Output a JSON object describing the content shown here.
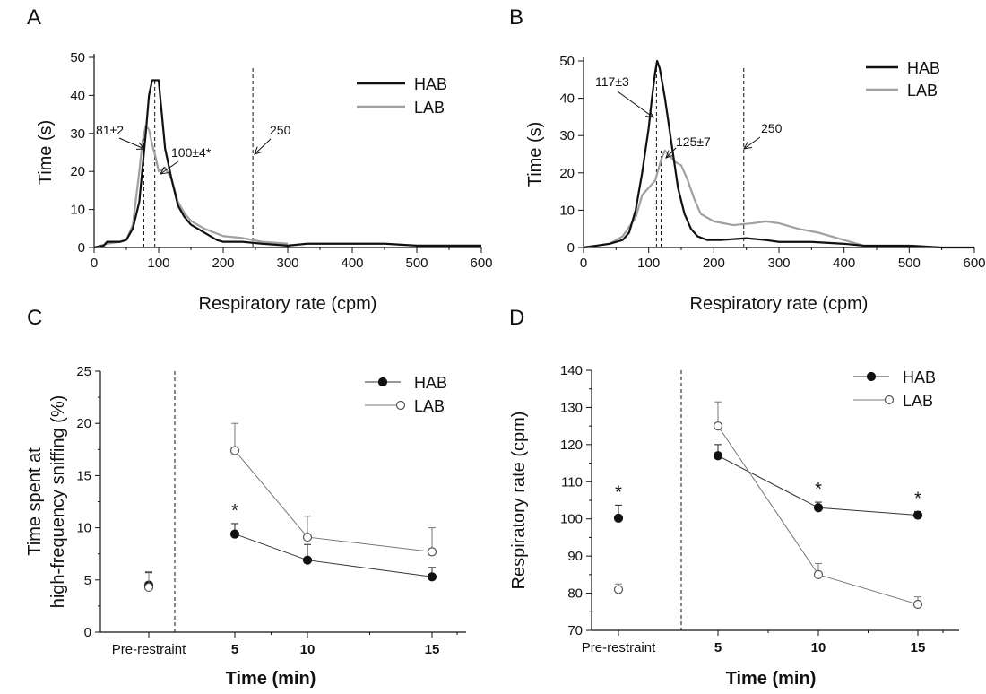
{
  "chart_data": [
    {
      "type": "line",
      "panel_label": "A",
      "xlabel": "Respiratory rate (cpm)",
      "ylabel": "Time (s)",
      "xlim": [
        0,
        600
      ],
      "ylim": [
        0,
        50
      ],
      "xticks": [
        "0",
        "100",
        "200",
        "300",
        "400",
        "500",
        "600"
      ],
      "yticks": [
        "0",
        "10",
        "20",
        "30",
        "40",
        "50"
      ],
      "legend_position": "top-right",
      "series": [
        {
          "name": "HAB",
          "color": "#111111",
          "x": [
            0,
            15,
            20,
            40,
            50,
            60,
            70,
            80,
            85,
            90,
            95,
            100,
            105,
            110,
            120,
            130,
            140,
            150,
            170,
            190,
            200,
            230,
            260,
            300,
            330,
            360,
            400,
            450,
            500,
            550,
            600
          ],
          "y": [
            0,
            0.5,
            1.5,
            1.5,
            2,
            5,
            12,
            30,
            40,
            44,
            44,
            44,
            35,
            26,
            18,
            11,
            8,
            6,
            4,
            2,
            1.5,
            1.5,
            1,
            0.5,
            1,
            1,
            1,
            1,
            0.5,
            0.5,
            0.5
          ]
        },
        {
          "name": "LAB",
          "color": "#a0a0a0",
          "x": [
            0,
            20,
            40,
            50,
            60,
            70,
            75,
            80,
            85,
            90,
            95,
            100,
            110,
            120,
            130,
            140,
            150,
            170,
            200,
            230,
            260,
            300
          ],
          "y": [
            0,
            1,
            1.5,
            2,
            6,
            20,
            28,
            32,
            31,
            27,
            24,
            20,
            21,
            18,
            12,
            9,
            7,
            5,
            3,
            2.5,
            1.5,
            1
          ]
        }
      ],
      "vlines": [
        77,
        94,
        246
      ],
      "annotations": [
        "81±2",
        "100±4*",
        "250"
      ]
    },
    {
      "type": "line",
      "panel_label": "B",
      "xlabel": "Respiratory rate (cpm)",
      "ylabel": "Time (s)",
      "xlim": [
        0,
        600
      ],
      "ylim": [
        0,
        50
      ],
      "xticks": [
        "0",
        "100",
        "200",
        "300",
        "400",
        "500",
        "600"
      ],
      "yticks": [
        "0",
        "10",
        "20",
        "30",
        "40",
        "50"
      ],
      "legend_position": "top-right",
      "series": [
        {
          "name": "HAB",
          "color": "#111111",
          "x": [
            0,
            20,
            40,
            60,
            70,
            80,
            90,
            100,
            105,
            110,
            113,
            117,
            125,
            135,
            145,
            155,
            165,
            175,
            190,
            210,
            250,
            280,
            300,
            350,
            400,
            430,
            500,
            550,
            600
          ],
          "y": [
            0,
            0.5,
            1,
            2,
            4,
            10,
            20,
            32,
            40,
            47,
            50,
            48,
            40,
            28,
            16,
            9,
            5,
            3,
            2,
            2,
            2.5,
            2,
            1.5,
            1.5,
            1,
            0.5,
            0.5,
            0,
            0
          ]
        },
        {
          "name": "LAB",
          "color": "#a0a0a0",
          "x": [
            0,
            20,
            40,
            60,
            80,
            90,
            100,
            110,
            120,
            125,
            130,
            140,
            150,
            160,
            170,
            180,
            200,
            230,
            260,
            280,
            300,
            330,
            360,
            400,
            420,
            430
          ],
          "y": [
            0,
            0.5,
            1,
            3,
            8,
            14,
            16,
            18,
            24,
            26,
            25,
            23,
            22,
            18,
            13,
            9,
            7,
            6,
            6.5,
            7,
            6.5,
            5,
            4,
            2,
            1,
            0.5
          ]
        }
      ],
      "vlines": [
        112,
        119,
        246
      ],
      "annotations": [
        "117±3",
        "125±7",
        "250"
      ]
    },
    {
      "type": "line",
      "panel_label": "C",
      "xlabel": "Time (min)",
      "ylabel_line1": "Time spent at",
      "ylabel_line2": "high-frequency sniffing (%)",
      "ylim": [
        0,
        25
      ],
      "yticks": [
        "0",
        "5",
        "10",
        "15",
        "20",
        "25"
      ],
      "categories": [
        "Pre-restraint",
        "5",
        "10",
        "15"
      ],
      "legend_position": "top-right",
      "series": [
        {
          "name": "HAB",
          "marker": "filled",
          "values": [
            4.5,
            9.4,
            6.9,
            5.3
          ],
          "err": [
            1.2,
            1.0,
            1.5,
            0.9
          ]
        },
        {
          "name": "LAB",
          "marker": "open",
          "values": [
            4.3,
            17.4,
            9.1,
            7.7
          ],
          "err": [
            1.5,
            2.6,
            2.0,
            2.3
          ]
        }
      ],
      "significance": [
        "*"
      ]
    },
    {
      "type": "line",
      "panel_label": "D",
      "xlabel": "Time (min)",
      "ylabel": "Respiratory rate (cpm)",
      "ylim": [
        70,
        140
      ],
      "yticks": [
        "70",
        "80",
        "90",
        "100",
        "110",
        "120",
        "130",
        "140"
      ],
      "categories": [
        "Pre-restraint",
        "5",
        "10",
        "15"
      ],
      "legend_position": "top-right",
      "series": [
        {
          "name": "HAB",
          "marker": "filled",
          "values": [
            100.2,
            117,
            103,
            101
          ],
          "err": [
            3.5,
            3,
            1.5,
            1
          ]
        },
        {
          "name": "LAB",
          "marker": "open",
          "values": [
            81,
            125,
            85,
            77
          ],
          "err": [
            1.5,
            6.5,
            3,
            2
          ]
        }
      ],
      "significance": [
        "*",
        "*",
        "*"
      ]
    }
  ]
}
